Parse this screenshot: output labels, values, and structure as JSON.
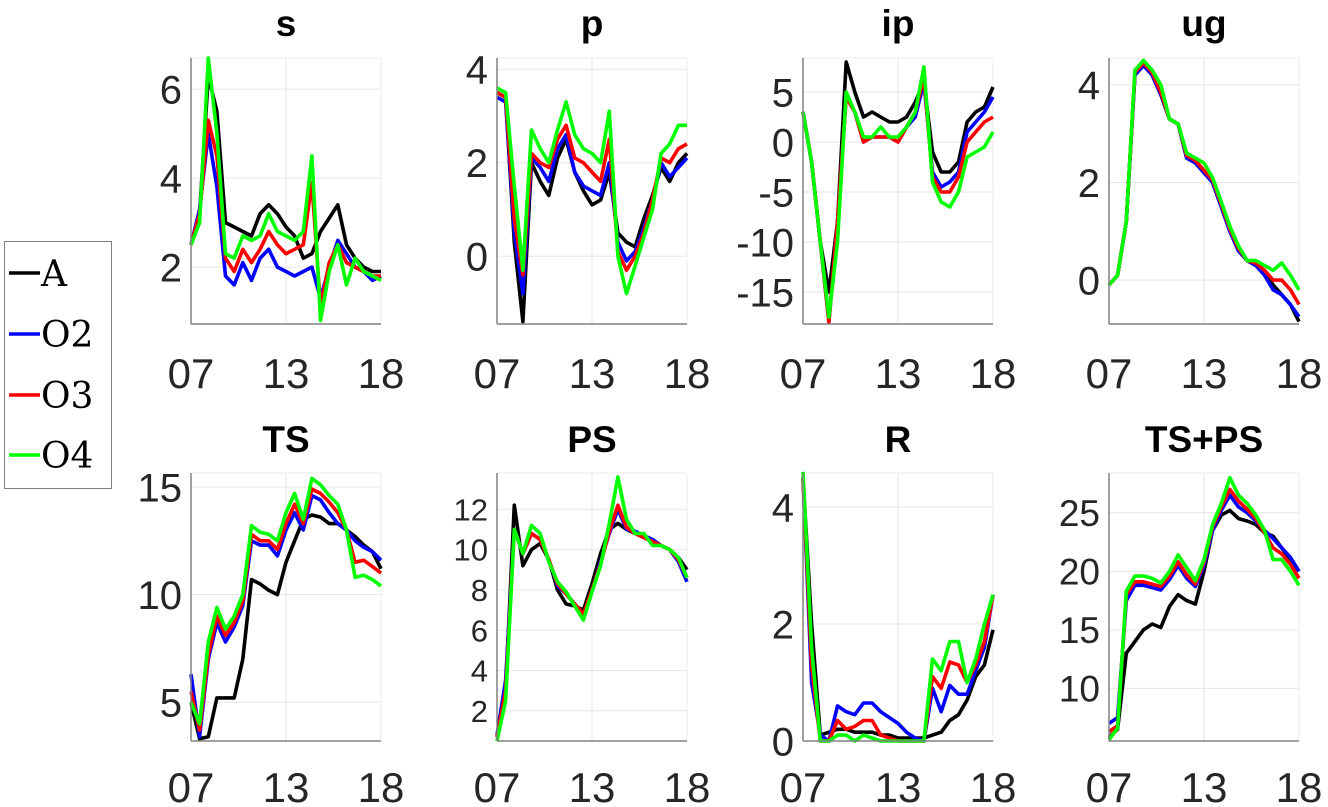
{
  "chart_data": [
    {
      "type": "line",
      "title": "s",
      "x_start": 2007,
      "x_step": 0.5,
      "xlim": [
        2007,
        2018
      ],
      "xticks": [
        2007,
        2012.5,
        2018
      ],
      "xtick_labels": [
        "07",
        "13",
        "18"
      ],
      "ylim": [
        0.72,
        6.7
      ],
      "yticks": [
        2,
        4,
        6
      ],
      "ytick_labels": [
        "2",
        "4",
        "6"
      ],
      "grid": true,
      "series": [
        {
          "name": "A",
          "values": [
            2.5,
            3.2,
            6.3,
            5.5,
            3.0,
            2.9,
            2.8,
            2.7,
            3.2,
            3.4,
            3.2,
            2.9,
            2.7,
            2.2,
            2.3,
            2.8,
            3.1,
            3.4,
            2.5,
            2.2,
            2.0,
            1.9,
            1.9
          ]
        },
        {
          "name": "O2",
          "values": [
            2.5,
            3.3,
            5.0,
            3.8,
            1.8,
            1.6,
            2.1,
            1.7,
            2.2,
            2.4,
            2.0,
            1.9,
            1.8,
            1.9,
            2.0,
            1.3,
            2.0,
            2.6,
            2.3,
            2.0,
            1.9,
            1.7,
            1.8
          ]
        },
        {
          "name": "O3",
          "values": [
            2.5,
            3.2,
            5.3,
            4.5,
            2.2,
            1.9,
            2.4,
            2.1,
            2.4,
            2.8,
            2.5,
            2.3,
            2.4,
            2.5,
            3.9,
            1.1,
            2.1,
            2.5,
            2.1,
            2.0,
            1.9,
            1.8,
            1.8
          ]
        },
        {
          "name": "O4",
          "values": [
            2.5,
            3.0,
            6.7,
            5.0,
            2.3,
            2.2,
            2.7,
            2.6,
            2.7,
            3.2,
            2.8,
            2.7,
            2.6,
            2.8,
            4.5,
            0.8,
            1.9,
            2.5,
            1.6,
            2.2,
            1.9,
            1.8,
            1.7
          ]
        }
      ]
    },
    {
      "type": "line",
      "title": "p",
      "x_start": 2007,
      "x_step": 0.5,
      "xlim": [
        2007,
        2018
      ],
      "xticks": [
        2007,
        2012.5,
        2018
      ],
      "xtick_labels": [
        "07",
        "13",
        "18"
      ],
      "ylim": [
        -1.45,
        4.24
      ],
      "yticks": [
        0,
        2,
        4
      ],
      "ytick_labels": [
        "0",
        "2",
        "4"
      ],
      "grid": true,
      "series": [
        {
          "name": "A",
          "values": [
            3.5,
            3.4,
            0.3,
            -1.4,
            2.0,
            1.6,
            1.3,
            2.1,
            2.5,
            1.8,
            1.4,
            1.1,
            1.2,
            1.8,
            0.5,
            0.3,
            0.2,
            0.8,
            1.3,
            1.9,
            1.6,
            2.0,
            2.2
          ]
        },
        {
          "name": "O2",
          "values": [
            3.4,
            3.3,
            0.5,
            -0.8,
            2.1,
            1.9,
            1.6,
            2.3,
            2.6,
            1.8,
            1.5,
            1.4,
            1.3,
            2.0,
            0.3,
            -0.1,
            0.1,
            0.6,
            1.2,
            2.0,
            1.7,
            1.9,
            2.1
          ]
        },
        {
          "name": "O3",
          "values": [
            3.5,
            3.4,
            0.8,
            -0.4,
            2.2,
            2.0,
            1.9,
            2.5,
            2.8,
            2.1,
            2.0,
            1.8,
            1.6,
            2.5,
            0.1,
            -0.3,
            0.0,
            0.5,
            1.2,
            2.1,
            2.0,
            2.3,
            2.4
          ]
        },
        {
          "name": "O4",
          "values": [
            3.6,
            3.5,
            1.5,
            -0.3,
            2.7,
            2.3,
            2.0,
            2.7,
            3.3,
            2.6,
            2.3,
            2.2,
            2.0,
            3.1,
            0.0,
            -0.8,
            -0.2,
            0.4,
            1.0,
            2.2,
            2.4,
            2.8,
            2.8
          ]
        }
      ]
    },
    {
      "type": "line",
      "title": "ip",
      "x_start": 2007,
      "x_step": 0.5,
      "xlim": [
        2007,
        2018
      ],
      "xticks": [
        2007,
        2012.5,
        2018
      ],
      "xtick_labels": [
        "07",
        "13",
        "18"
      ],
      "ylim": [
        -18.2,
        8.4
      ],
      "yticks": [
        -15,
        -10,
        -5,
        0,
        5
      ],
      "ytick_labels": [
        "-15",
        "-10",
        "-5",
        "0",
        "5"
      ],
      "grid": true,
      "series": [
        {
          "name": "A",
          "values": [
            3,
            -2,
            -10,
            -15,
            -8,
            8,
            5,
            2.5,
            3,
            2.5,
            2,
            2,
            2.5,
            4,
            6,
            -1,
            -3,
            -3,
            -2,
            2,
            3,
            3.5,
            5.5
          ]
        },
        {
          "name": "O2",
          "values": [
            3,
            -2,
            -10,
            -18,
            -8,
            4.5,
            3,
            0,
            0.5,
            0.5,
            0.5,
            0,
            1.5,
            2.5,
            6,
            -3,
            -4.5,
            -4,
            -3,
            1,
            2,
            3,
            4.5
          ]
        },
        {
          "name": "O3",
          "values": [
            3,
            -2,
            -10,
            -18,
            -8,
            4.5,
            3,
            0,
            0.5,
            0.5,
            0.5,
            0,
            1.5,
            3,
            6.5,
            -3.5,
            -5,
            -5,
            -3.5,
            0,
            1,
            2,
            2.5
          ]
        },
        {
          "name": "O4",
          "values": [
            3,
            -2,
            -10,
            -17.5,
            -10,
            5,
            3,
            0.5,
            0.5,
            1.5,
            0.5,
            0.5,
            1.5,
            3,
            7.5,
            -4,
            -6,
            -6.5,
            -5,
            -1.5,
            -1,
            -0.5,
            1
          ]
        }
      ]
    },
    {
      "type": "line",
      "title": "ug",
      "x_start": 2007,
      "x_step": 0.5,
      "xlim": [
        2007,
        2018
      ],
      "xticks": [
        2007,
        2012.5,
        2018
      ],
      "xtick_labels": [
        "07",
        "13",
        "18"
      ],
      "ylim": [
        -0.9,
        4.55
      ],
      "yticks": [
        0,
        2,
        4
      ],
      "ytick_labels": [
        "0",
        "2",
        "4"
      ],
      "grid": true,
      "series": [
        {
          "name": "A",
          "values": [
            -0.1,
            0.1,
            1.2,
            4.2,
            4.4,
            4.2,
            3.8,
            3.3,
            3.2,
            2.5,
            2.4,
            2.2,
            2.0,
            1.5,
            1.0,
            0.6,
            0.4,
            0.3,
            0.2,
            -0.1,
            -0.3,
            -0.5,
            -0.85
          ]
        },
        {
          "name": "O2",
          "values": [
            -0.1,
            0.1,
            1.2,
            4.2,
            4.4,
            4.2,
            3.8,
            3.3,
            3.2,
            2.5,
            2.4,
            2.2,
            2.0,
            1.5,
            1.0,
            0.6,
            0.4,
            0.3,
            0.1,
            -0.2,
            -0.3,
            -0.5,
            -0.75
          ]
        },
        {
          "name": "O3",
          "values": [
            -0.1,
            0.1,
            1.2,
            4.25,
            4.45,
            4.25,
            3.85,
            3.3,
            3.2,
            2.55,
            2.45,
            2.25,
            2.05,
            1.55,
            1.05,
            0.65,
            0.4,
            0.35,
            0.2,
            0.0,
            0.0,
            -0.2,
            -0.5
          ]
        },
        {
          "name": "O4",
          "values": [
            -0.1,
            0.1,
            1.2,
            4.3,
            4.5,
            4.3,
            4.0,
            3.3,
            3.2,
            2.6,
            2.5,
            2.4,
            2.1,
            1.6,
            1.1,
            0.7,
            0.4,
            0.4,
            0.3,
            0.2,
            0.35,
            0.1,
            -0.2
          ]
        }
      ]
    },
    {
      "type": "line",
      "title": "TS",
      "x_start": 2007,
      "x_step": 0.5,
      "xlim": [
        2007,
        2018
      ],
      "xticks": [
        2007,
        2012.5,
        2018
      ],
      "xtick_labels": [
        "07",
        "13",
        "18"
      ],
      "ylim": [
        3.2,
        15.65
      ],
      "yticks": [
        5,
        10,
        15
      ],
      "ytick_labels": [
        "5",
        "10",
        "15"
      ],
      "grid": true,
      "series": [
        {
          "name": "A",
          "values": [
            5.0,
            3.3,
            3.4,
            5.2,
            5.2,
            5.2,
            7.0,
            10.7,
            10.5,
            10.2,
            10.0,
            11.5,
            12.5,
            13.5,
            13.7,
            13.6,
            13.3,
            13.3,
            13.0,
            12.7,
            12.3,
            12.0,
            11.2
          ]
        },
        {
          "name": "O2",
          "values": [
            6.3,
            3.4,
            7.0,
            8.7,
            7.8,
            8.5,
            9.5,
            12.5,
            12.3,
            12.3,
            11.8,
            13.0,
            13.8,
            13.0,
            14.6,
            14.4,
            13.8,
            13.3,
            13.0,
            12.5,
            12.2,
            12.0,
            11.6
          ]
        },
        {
          "name": "O3",
          "values": [
            5.5,
            3.7,
            7.2,
            9.0,
            8.1,
            8.7,
            9.7,
            12.8,
            12.5,
            12.5,
            12.1,
            13.3,
            14.2,
            13.3,
            14.9,
            14.7,
            14.3,
            13.8,
            13.0,
            11.5,
            11.6,
            11.3,
            11.0
          ]
        },
        {
          "name": "O4",
          "values": [
            5.0,
            4.0,
            7.8,
            9.4,
            8.4,
            9.0,
            10.0,
            13.2,
            12.9,
            12.8,
            12.5,
            13.8,
            14.7,
            13.5,
            15.4,
            15.1,
            14.6,
            14.2,
            13.0,
            10.8,
            10.9,
            10.7,
            10.4
          ]
        }
      ]
    },
    {
      "type": "line",
      "title": "PS",
      "x_start": 2007,
      "x_step": 0.5,
      "xlim": [
        2007,
        2018
      ],
      "xticks": [
        2007,
        2012.5,
        2018
      ],
      "xtick_labels": [
        "07",
        "13",
        "18"
      ],
      "ylim": [
        0.5,
        13.8
      ],
      "yticks": [
        2,
        4,
        6,
        8,
        10,
        12
      ],
      "ytick_labels": [
        "2",
        "4",
        "6",
        "8",
        "10",
        "12"
      ],
      "grid": true,
      "series": [
        {
          "name": "A",
          "values": [
            0.7,
            3.0,
            12.2,
            9.2,
            10.0,
            10.3,
            9.5,
            8.0,
            7.3,
            7.2,
            7.0,
            8.3,
            9.8,
            11.0,
            11.3,
            11.0,
            10.8,
            10.6,
            10.4,
            10.2,
            10.0,
            9.6,
            9.0
          ]
        },
        {
          "name": "O2",
          "values": [
            0.8,
            3.5,
            11.0,
            9.8,
            10.8,
            10.5,
            9.5,
            8.2,
            7.8,
            7.3,
            6.7,
            8.0,
            9.4,
            10.8,
            12.0,
            11.0,
            10.9,
            10.7,
            10.5,
            10.2,
            10.0,
            9.4,
            8.4
          ]
        },
        {
          "name": "O3",
          "values": [
            0.7,
            3.0,
            11.0,
            9.8,
            10.8,
            10.5,
            9.5,
            8.3,
            7.8,
            7.3,
            6.8,
            8.0,
            9.3,
            10.9,
            12.2,
            11.1,
            10.8,
            10.6,
            10.4,
            10.2,
            10.0,
            9.5,
            8.6
          ]
        },
        {
          "name": "O4",
          "values": [
            0.5,
            2.5,
            11.0,
            9.8,
            11.2,
            10.8,
            9.4,
            8.4,
            7.9,
            7.2,
            6.5,
            7.9,
            9.2,
            11.3,
            13.6,
            11.5,
            10.8,
            10.8,
            10.2,
            10.2,
            10.0,
            9.6,
            8.6
          ]
        }
      ]
    },
    {
      "type": "line",
      "title": "R",
      "x_start": 2007,
      "x_step": 0.5,
      "xlim": [
        2007,
        2018
      ],
      "xticks": [
        2007,
        2012.5,
        2018
      ],
      "xtick_labels": [
        "07",
        "13",
        "18"
      ],
      "ylim": [
        0,
        4.58
      ],
      "yticks": [
        0,
        2,
        4
      ],
      "ytick_labels": [
        "0",
        "2",
        "4"
      ],
      "grid": true,
      "series": [
        {
          "name": "A",
          "values": [
            4.5,
            2.0,
            0.1,
            0.15,
            0.2,
            0.2,
            0.15,
            0.15,
            0.15,
            0.1,
            0.1,
            0.05,
            0.05,
            0.05,
            0.05,
            0.1,
            0.15,
            0.35,
            0.45,
            0.7,
            1.1,
            1.3,
            1.9
          ]
        },
        {
          "name": "O2",
          "values": [
            4.5,
            1.0,
            0.1,
            0.0,
            0.6,
            0.5,
            0.45,
            0.65,
            0.65,
            0.5,
            0.4,
            0.3,
            0.15,
            0.05,
            0.0,
            0.9,
            0.5,
            0.95,
            0.8,
            0.8,
            1.2,
            1.6,
            2.5
          ]
        },
        {
          "name": "O3",
          "values": [
            4.5,
            1.3,
            0.0,
            0.0,
            0.35,
            0.2,
            0.25,
            0.35,
            0.35,
            0.1,
            0.05,
            0.0,
            0.0,
            0.0,
            0.0,
            1.1,
            0.9,
            1.35,
            1.3,
            1.0,
            1.3,
            1.7,
            2.5
          ]
        },
        {
          "name": "O4",
          "values": [
            4.6,
            1.6,
            0.0,
            0.0,
            0.1,
            0.1,
            0.0,
            0.1,
            0.05,
            0.0,
            0.0,
            0.0,
            0.0,
            0.0,
            0.0,
            1.4,
            1.2,
            1.7,
            1.7,
            1.0,
            1.4,
            2.0,
            2.5
          ]
        }
      ]
    },
    {
      "type": "line",
      "title": "TS+PS",
      "x_start": 2007,
      "x_step": 0.5,
      "xlim": [
        2007,
        2018
      ],
      "xticks": [
        2007,
        2012.5,
        2018
      ],
      "xtick_labels": [
        "07",
        "13",
        "18"
      ],
      "ylim": [
        5.5,
        28.4
      ],
      "yticks": [
        10,
        15,
        20,
        25
      ],
      "ytick_labels": [
        "10",
        "15",
        "20",
        "25"
      ],
      "grid": true,
      "series": [
        {
          "name": "A",
          "values": [
            5.8,
            6.5,
            13.0,
            14.0,
            15.0,
            15.5,
            15.2,
            17.0,
            18.0,
            17.5,
            17.2,
            20.0,
            23.5,
            24.8,
            25.2,
            24.5,
            24.3,
            24.0,
            23.3,
            23.0,
            22.0,
            21.0,
            20.0
          ]
        },
        {
          "name": "O2",
          "values": [
            7.0,
            7.5,
            17.5,
            18.8,
            18.8,
            18.6,
            18.4,
            19.3,
            20.5,
            19.4,
            18.7,
            20.5,
            23.5,
            25.2,
            26.5,
            25.5,
            25.0,
            24.3,
            23.5,
            22.8,
            22.0,
            21.2,
            20.0
          ]
        },
        {
          "name": "O3",
          "values": [
            6.3,
            6.8,
            18.0,
            19.1,
            19.1,
            18.9,
            18.7,
            19.6,
            20.8,
            19.7,
            18.9,
            20.8,
            23.8,
            25.5,
            27.0,
            26.0,
            25.3,
            24.5,
            23.3,
            22.0,
            21.5,
            20.6,
            19.4
          ]
        },
        {
          "name": "O4",
          "values": [
            5.6,
            6.6,
            18.3,
            19.6,
            19.6,
            19.4,
            19.0,
            20.0,
            21.4,
            20.3,
            19.2,
            21.0,
            24.0,
            25.8,
            28.0,
            26.5,
            25.8,
            24.8,
            23.5,
            21.0,
            21.0,
            20.0,
            18.8
          ]
        }
      ]
    }
  ],
  "legend": {
    "placement": "left",
    "entries": [
      {
        "label": "A",
        "color": "#000000"
      },
      {
        "label": "O2",
        "color": "#0000ff"
      },
      {
        "label": "O3",
        "color": "#ff0000"
      },
      {
        "label": "O4",
        "color": "#00ff00"
      }
    ]
  }
}
